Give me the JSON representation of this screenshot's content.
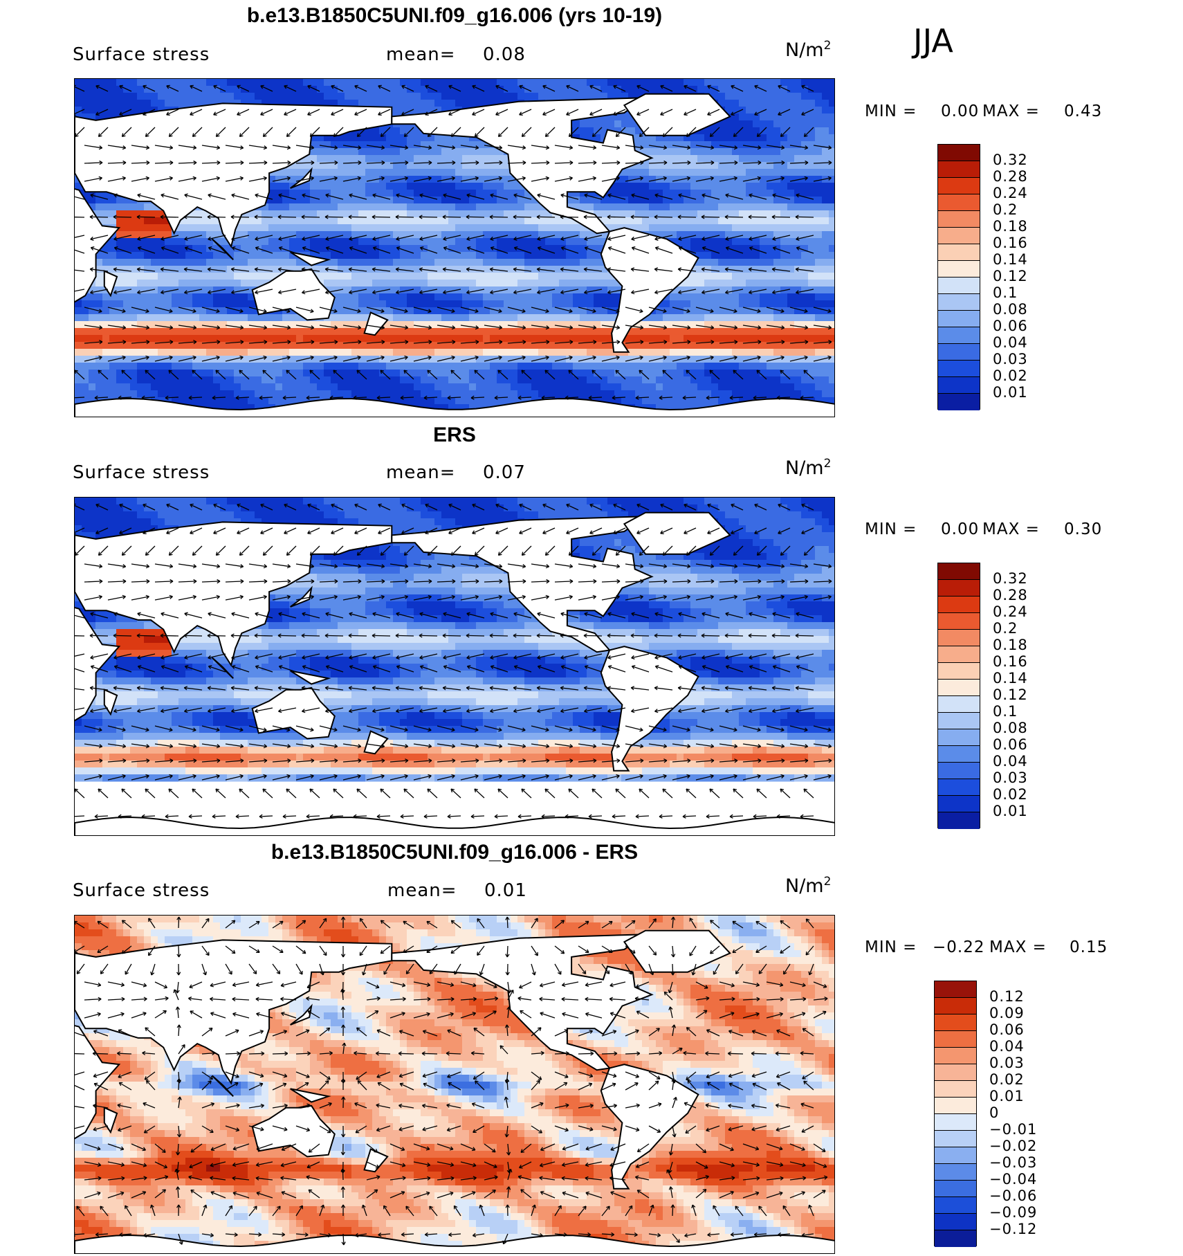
{
  "season": "JJA",
  "colors": {
    "seq": [
      "#08066e",
      "#0a1ea3",
      "#0d34c8",
      "#1c4edd",
      "#3a6be3",
      "#5b8ce9",
      "#86adf0",
      "#aac6f4",
      "#d2e2f8",
      "#fcebdc",
      "#fbd0b5",
      "#f7ad8b",
      "#f28a63",
      "#ea5a30",
      "#dc3a12",
      "#b91d07",
      "#800a02"
    ],
    "diff": [
      "#07095e",
      "#0b1d99",
      "#0e33c4",
      "#1c4fd9",
      "#3b6ee0",
      "#5c8be8",
      "#8aaff0",
      "#b8d0f6",
      "#dce9fa",
      "#fcebdc",
      "#fbd3bb",
      "#f7b497",
      "#f4966f",
      "#ee6f42",
      "#e34d1c",
      "#c92c08",
      "#98130a"
    ]
  },
  "chart_data": [
    {
      "type": "heatmap",
      "title": "b.e13.B1850C5UNI.f09_g16.006 (yrs 10-19)",
      "variable": "Surface stress",
      "mean_label": "mean=",
      "mean_value": "0.08",
      "units_base": "N/m",
      "units_exp": "2",
      "min_label": "MIN =",
      "min_value": "0.00",
      "max_label": "MAX =",
      "max_value": "0.43",
      "legend_levels": [
        "0.32",
        "0.28",
        "0.24",
        "0.2",
        "0.18",
        "0.16",
        "0.14",
        "0.12",
        "0.1",
        "0.08",
        "0.06",
        "0.04",
        "0.03",
        "0.02",
        "0.01"
      ],
      "value_range": [
        0.0,
        0.43
      ]
    },
    {
      "type": "heatmap",
      "title": "ERS",
      "variable": "Surface stress",
      "mean_label": "mean=",
      "mean_value": "0.07",
      "units_base": "N/m",
      "units_exp": "2",
      "min_label": "MIN =",
      "min_value": "0.00",
      "max_label": "MAX =",
      "max_value": "0.30",
      "legend_levels": [
        "0.32",
        "0.28",
        "0.24",
        "0.2",
        "0.18",
        "0.16",
        "0.14",
        "0.12",
        "0.1",
        "0.08",
        "0.06",
        "0.04",
        "0.03",
        "0.02",
        "0.01"
      ],
      "value_range": [
        0.0,
        0.3
      ]
    },
    {
      "type": "heatmap",
      "title": "b.e13.B1850C5UNI.f09_g16.006 - ERS",
      "variable": "Surface stress",
      "mean_label": "mean=",
      "mean_value": "0.01",
      "units_base": "N/m",
      "units_exp": "2",
      "min_label": "MIN =",
      "min_value": "−0.22",
      "max_label": "MAX =",
      "max_value": "0.15",
      "legend_levels": [
        "0.12",
        "0.09",
        "0.06",
        "0.04",
        "0.03",
        "0.02",
        "0.01",
        "0",
        "−0.01",
        "−0.02",
        "−0.03",
        "−0.04",
        "−0.06",
        "−0.09",
        "−0.12"
      ],
      "value_range": [
        -0.22,
        0.15
      ]
    }
  ]
}
